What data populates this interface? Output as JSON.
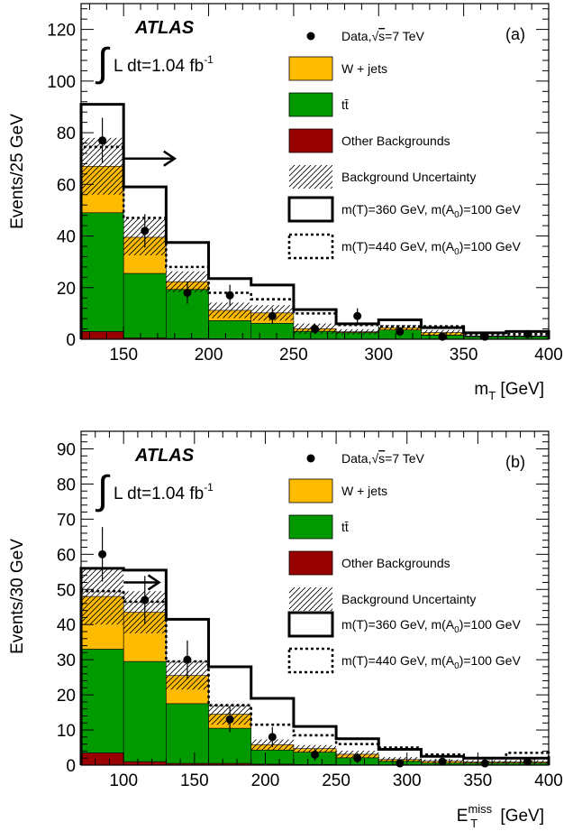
{
  "chart_data": [
    {
      "type": "histogram",
      "panel_label": "(a)",
      "experiment": "ATLAS",
      "lumi_integral": "L dt=1.04 fb",
      "lumi_sup": "-1",
      "xlabel": "m",
      "xlabel_sub": "T",
      "xlabel_unit": "[GeV]",
      "ylabel": "Events/25 GeV",
      "xlim": [
        125,
        400
      ],
      "ylim": [
        0,
        130
      ],
      "xticks": [
        150,
        200,
        250,
        300,
        350,
        400
      ],
      "yticks": [
        0,
        20,
        40,
        60,
        80,
        100,
        120
      ],
      "arrow_from_x": 150,
      "arrow_to_x": 180,
      "arrow_y": 70,
      "bins": [
        125,
        150,
        175,
        200,
        225,
        250,
        275,
        300,
        325,
        350,
        375,
        400
      ],
      "stack": [
        {
          "name": "Other Backgrounds",
          "color": "#990000",
          "values": [
            3,
            0.5,
            0.3,
            0.2,
            0.2,
            0.1,
            0.1,
            0.1,
            0.1,
            0.05,
            0.05
          ]
        },
        {
          "name": "tt̄",
          "color": "#009900",
          "values": [
            46,
            25,
            19,
            7,
            6,
            3,
            2.5,
            3.5,
            1.5,
            1,
            1
          ]
        },
        {
          "name": "W + jets",
          "color": "#ffbb00",
          "values": [
            18,
            14,
            3,
            4,
            4,
            1,
            0.3,
            0.9,
            1,
            0.2,
            0.2
          ]
        }
      ],
      "uncertainty": [
        11,
        7,
        4,
        3,
        3,
        2,
        1,
        1,
        1,
        0.5,
        0.5
      ],
      "signal_360": [
        91,
        59,
        37.5,
        23.5,
        21,
        11.5,
        6,
        7.5,
        4.5,
        2.5,
        3
      ],
      "signal_440": [
        74.5,
        47,
        28,
        18,
        15.5,
        10,
        5.5,
        5,
        5,
        2,
        2
      ],
      "data": {
        "x": [
          137.5,
          162.5,
          187.5,
          212.5,
          237.5,
          262.5,
          287.5,
          312.5,
          337.5,
          362.5,
          387.5
        ],
        "y": [
          77,
          42,
          18,
          17,
          9,
          4,
          9,
          3,
          1,
          1,
          2
        ]
      },
      "legend": {
        "data_label": "Data,",
        "data_energy": "=7 TeV",
        "wjets": "W + jets",
        "ttbar": "tt̄",
        "other": "Other Backgrounds",
        "unc": "Background Uncertainty",
        "sig1_a": "m(T)=360 GeV, m(A",
        "sig1_sub": "0",
        "sig1_b": ")=100 GeV",
        "sig2_a": "m(T)=440 GeV, m(A",
        "sig2_sub": "0",
        "sig2_b": ")=100 GeV"
      }
    },
    {
      "type": "histogram",
      "panel_label": "(b)",
      "experiment": "ATLAS",
      "lumi_integral": "L dt=1.04 fb",
      "lumi_sup": "-1",
      "xlabel": "E",
      "xlabel_sub": "T",
      "xlabel_sup": "miss",
      "xlabel_unit": "[GeV]",
      "ylabel": "Events/30 GeV",
      "xlim": [
        70,
        400
      ],
      "ylim": [
        0,
        95
      ],
      "xticks": [
        100,
        150,
        200,
        250,
        300,
        350,
        400
      ],
      "yticks": [
        0,
        10,
        20,
        30,
        40,
        50,
        60,
        70,
        80,
        90
      ],
      "arrow_from_x": 100,
      "arrow_to_x": 125,
      "arrow_y": 52,
      "bins": [
        70,
        100,
        130,
        160,
        190,
        220,
        250,
        280,
        310,
        340,
        370,
        400
      ],
      "stack": [
        {
          "name": "Other Backgrounds",
          "color": "#990000",
          "values": [
            3.5,
            1,
            0.5,
            0.5,
            0.3,
            0.2,
            0.1,
            0.1,
            0.1,
            0.1,
            0.1
          ]
        },
        {
          "name": "tt̄",
          "color": "#009900",
          "values": [
            29.5,
            28.5,
            17,
            10,
            4,
            3.5,
            2,
            1,
            0.5,
            0.5,
            0.5
          ]
        },
        {
          "name": "W + jets",
          "color": "#ffbb00",
          "values": [
            15,
            14,
            8,
            4,
            1.5,
            1,
            1,
            0.5,
            0.5,
            0.3,
            0.3
          ]
        }
      ],
      "uncertainty": [
        8,
        6,
        4,
        3,
        1.5,
        1,
        1,
        0.7,
        0.5,
        0.5,
        0.5
      ],
      "signal_360": [
        56,
        55.5,
        41.5,
        28,
        19,
        11,
        7.5,
        4.5,
        2.5,
        2,
        2
      ],
      "signal_440": [
        49.5,
        46.5,
        29.5,
        17,
        11.5,
        8.5,
        6,
        5,
        3,
        2,
        3.5
      ],
      "data": {
        "x": [
          85,
          115,
          145,
          175,
          205,
          235,
          265,
          295,
          325,
          355,
          385
        ],
        "y": [
          60,
          47,
          30,
          13,
          8,
          3,
          2,
          0.5,
          1,
          0.5,
          1
        ]
      },
      "legend": {
        "data_label": "Data,",
        "data_energy": "=7 TeV",
        "wjets": "W + jets",
        "ttbar": "tt̄",
        "other": "Other Backgrounds",
        "unc": "Background Uncertainty",
        "sig1_a": "m(T)=360 GeV, m(A",
        "sig1_sub": "0",
        "sig1_b": ")=100 GeV",
        "sig2_a": "m(T)=440 GeV, m(A",
        "sig2_sub": "0",
        "sig2_b": ")=100 GeV"
      }
    }
  ]
}
